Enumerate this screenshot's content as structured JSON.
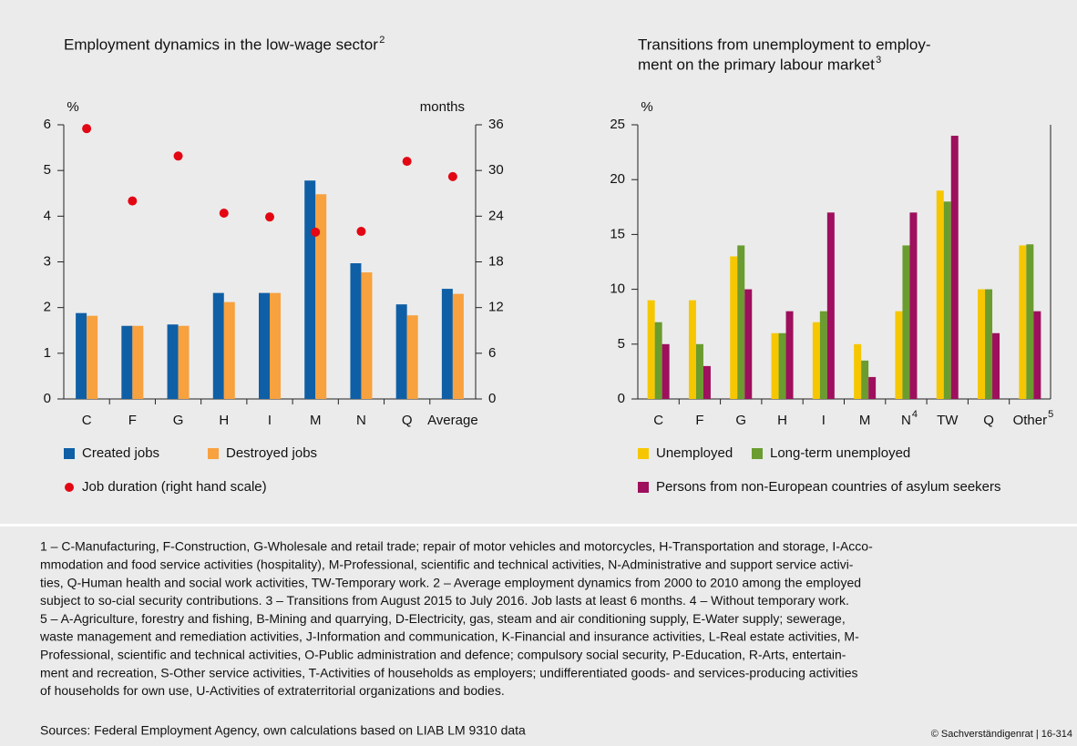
{
  "chart_data": [
    {
      "type": "bar",
      "title": "Employment dynamics in the low-wage sector",
      "title_note": "2",
      "ylabel": "%",
      "y2label": "months",
      "categories": [
        "C",
        "F",
        "G",
        "H",
        "I",
        "M",
        "N",
        "Q",
        "Average"
      ],
      "series": [
        {
          "name": "Created jobs",
          "color": "#0f5fa6",
          "values": [
            1.88,
            1.6,
            1.63,
            2.32,
            2.32,
            4.78,
            2.97,
            2.07,
            2.41
          ]
        },
        {
          "name": "Destroyed jobs",
          "color": "#f7a13f",
          "values": [
            1.82,
            1.6,
            1.6,
            2.12,
            2.32,
            4.48,
            2.77,
            1.83,
            2.3
          ]
        },
        {
          "name": "Job duration (right hand scale)",
          "color": "#e30613",
          "style": "dot",
          "axis": "y2",
          "values": [
            35.5,
            26.0,
            31.9,
            24.4,
            23.9,
            21.9,
            22.0,
            31.2,
            29.2
          ]
        }
      ],
      "ylim": [
        0,
        6
      ],
      "yticks": [
        0,
        1,
        2,
        3,
        4,
        5,
        6
      ],
      "y2lim": [
        0,
        36
      ],
      "y2ticks": [
        0,
        6,
        12,
        18,
        24,
        30,
        36
      ]
    },
    {
      "type": "bar",
      "title_lines": [
        "Transitions from unemployment to employ-",
        "ment on the primary labour market"
      ],
      "title_note": "3",
      "ylabel": "%",
      "categories": [
        "C",
        "F",
        "G",
        "H",
        "I",
        "M",
        "N",
        "TW",
        "Q",
        "Other"
      ],
      "category_notes": [
        null,
        null,
        null,
        null,
        null,
        null,
        "4",
        null,
        null,
        "5"
      ],
      "series": [
        {
          "name": "Unemployed",
          "color": "#f6c700",
          "values": [
            9,
            9,
            13,
            6,
            7,
            5,
            8,
            19,
            10,
            14
          ]
        },
        {
          "name": "Long-term unemployed",
          "color": "#6a9c2f",
          "values": [
            7,
            5,
            14,
            6,
            8,
            3.5,
            14,
            18,
            10,
            14.1
          ]
        },
        {
          "name": "Persons from non-European countries of asylum seekers",
          "color": "#9e0f5d",
          "values": [
            5,
            3,
            10,
            8,
            17,
            2,
            17,
            24,
            6,
            8
          ]
        }
      ],
      "ylim": [
        0,
        25
      ],
      "yticks": [
        0,
        5,
        10,
        15,
        20,
        25
      ]
    }
  ],
  "footnotes": [
    "1 – C-Manufacturing, F-Construction, G-Wholesale and retail trade; repair of motor vehicles and motorcycles, H-Transportation and storage, I-Acco-",
    "mmodation and food service activities (hospitality), M-Professional, scientific and technical activities, N-Administrative and support service activi-",
    "ties, Q-Human health and social work activities, TW-Temporary work.  2 – Average employment dynamics from 2000 to 2010 among the employed",
    "subject to so-cial security contributions.  3 – Transitions from August 2015 to July 2016. Job lasts at least 6 months.  4 – Without temporary work.",
    " 5 – A-Agriculture, forestry and fishing, B-Mining and quarrying, D-Electricity, gas, steam and air conditioning supply, E-Water supply; sewerage,",
    "waste management and remediation activities, J-Information and communication, K-Financial and insurance activities, L-Real estate activities, M-",
    "Professional, scientific and technical activities, O-Public administration and defence; compulsory social security, P-Education, R-Arts, entertain-",
    "ment and recreation, S-Other service activities, T-Activities of households as employers; undifferentiated goods- and services-producing activities",
    "of households for own use, U-Activities of extraterritorial organizations and bodies."
  ],
  "source": "Sources: Federal Employment Agency, own calculations based on LIAB LM 9310 data",
  "copyright": "© Sachverständigenrat | 16-314"
}
